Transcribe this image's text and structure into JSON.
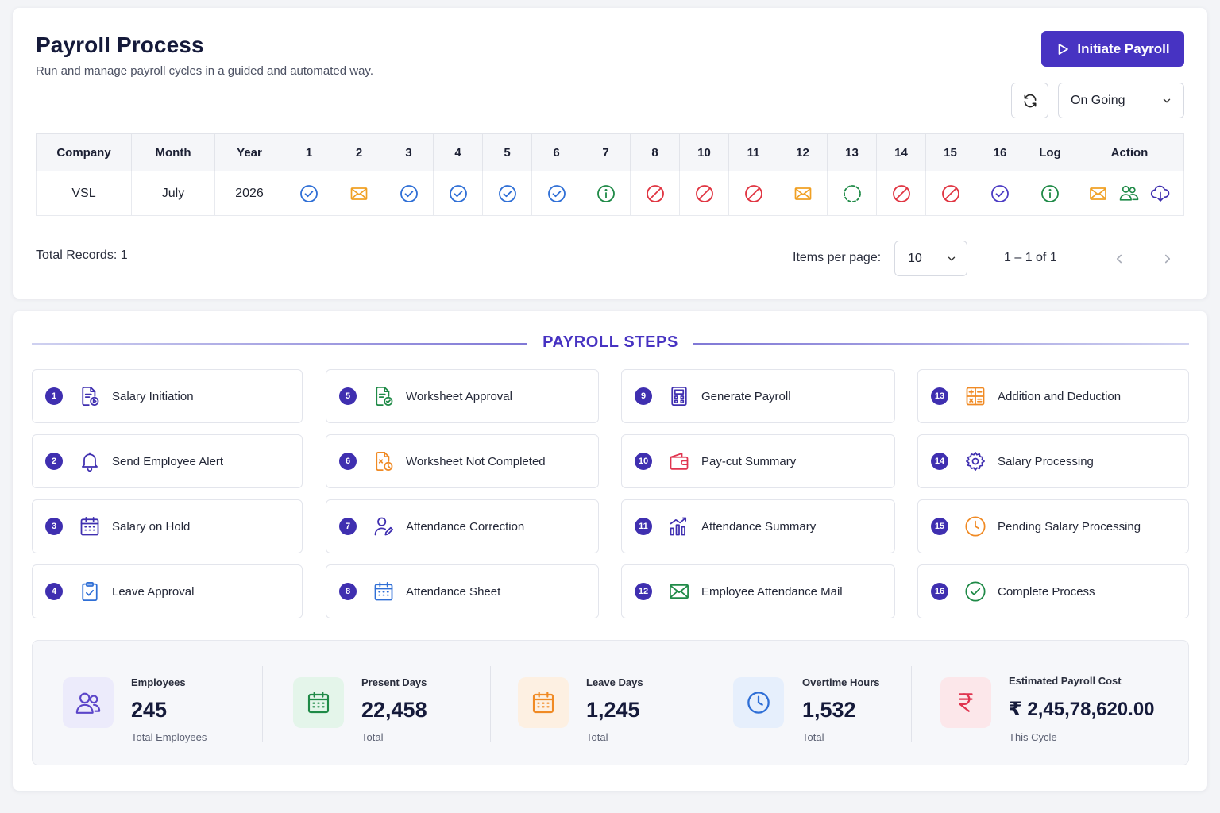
{
  "header": {
    "title": "Payroll Process",
    "subtitle": "Run and manage payroll cycles in a guided and automated way.",
    "initiate_label": "Initiate Payroll",
    "status_value": "On Going"
  },
  "table": {
    "columns": [
      "Company",
      "Month",
      "Year",
      "1",
      "2",
      "3",
      "4",
      "5",
      "6",
      "7",
      "8",
      "10",
      "11",
      "12",
      "13",
      "14",
      "15",
      "16",
      "Log",
      "Action"
    ],
    "row": {
      "company": "VSL",
      "month": "July",
      "year": "2026",
      "step_status": [
        {
          "col": "1",
          "icon": "check-circle-icon"
        },
        {
          "col": "2",
          "icon": "mail-icon"
        },
        {
          "col": "3",
          "icon": "check-circle-icon"
        },
        {
          "col": "4",
          "icon": "check-circle-icon"
        },
        {
          "col": "5",
          "icon": "check-circle-icon"
        },
        {
          "col": "6",
          "icon": "check-circle-icon"
        },
        {
          "col": "7",
          "icon": "info-circle-icon"
        },
        {
          "col": "8",
          "icon": "blocked-icon"
        },
        {
          "col": "10",
          "icon": "blocked-icon"
        },
        {
          "col": "11",
          "icon": "blocked-icon"
        },
        {
          "col": "12",
          "icon": "mail-icon"
        },
        {
          "col": "13",
          "icon": "in-progress-icon"
        },
        {
          "col": "14",
          "icon": "blocked-icon"
        },
        {
          "col": "15",
          "icon": "blocked-icon"
        },
        {
          "col": "16",
          "icon": "check-circle-purple-icon"
        }
      ],
      "log_icon": "info-circle-icon",
      "actions": [
        "mail-icon",
        "users-icon",
        "cloud-download-icon"
      ]
    }
  },
  "footer": {
    "total_label": "Total Records:",
    "total_value": "1",
    "ipp_label": "Items per page:",
    "ipp_value": "10",
    "range": "1 – 1 of 1"
  },
  "steps": {
    "title": "PAYROLL STEPS",
    "items": [
      {
        "n": "1",
        "label": "Salary Initiation",
        "icon": "document-play-icon"
      },
      {
        "n": "2",
        "label": "Send Employee Alert",
        "icon": "bell-icon"
      },
      {
        "n": "3",
        "label": "Salary on Hold",
        "icon": "calendar-icon"
      },
      {
        "n": "4",
        "label": "Leave Approval",
        "icon": "clipboard-check-icon"
      },
      {
        "n": "5",
        "label": "Worksheet Approval",
        "icon": "document-check-icon"
      },
      {
        "n": "6",
        "label": "Worksheet Not Completed",
        "icon": "document-clock-icon"
      },
      {
        "n": "7",
        "label": "Attendance Correction",
        "icon": "user-edit-icon"
      },
      {
        "n": "8",
        "label": "Attendance Sheet",
        "icon": "calendar-grid-icon"
      },
      {
        "n": "9",
        "label": "Generate Payroll",
        "icon": "calculator-icon"
      },
      {
        "n": "10",
        "label": "Pay-cut Summary",
        "icon": "wallet-icon"
      },
      {
        "n": "11",
        "label": "Attendance Summary",
        "icon": "bar-chart-icon"
      },
      {
        "n": "12",
        "label": "Employee Attendance Mail",
        "icon": "mail-icon"
      },
      {
        "n": "13",
        "label": "Addition and Deduction",
        "icon": "plus-minus-icon"
      },
      {
        "n": "14",
        "label": "Salary Processing",
        "icon": "gear-icon"
      },
      {
        "n": "15",
        "label": "Pending Salary Processing",
        "icon": "clock-icon"
      },
      {
        "n": "16",
        "label": "Complete Process",
        "icon": "check-circle-icon"
      }
    ]
  },
  "stats": [
    {
      "label": "Employees",
      "value": "245",
      "sub": "Total Employees",
      "icon": "users-icon",
      "color": "#5b45c9",
      "bg": "#ecebfb"
    },
    {
      "label": "Present Days",
      "value": "22,458",
      "sub": "Total",
      "icon": "calendar-icon",
      "color": "#1f8a47",
      "bg": "#e4f5ea"
    },
    {
      "label": "Leave Days",
      "value": "1,245",
      "sub": "Total",
      "icon": "calendar-icon",
      "color": "#f08a24",
      "bg": "#fdf0e2"
    },
    {
      "label": "Overtime Hours",
      "value": "1,532",
      "sub": "Total",
      "icon": "clock-icon",
      "color": "#2f6fd6",
      "bg": "#e6effc"
    },
    {
      "label": "Estimated Payroll Cost",
      "value": "₹ 2,45,78,620.00",
      "sub": "This Cycle",
      "icon": "rupee-icon",
      "color": "#e0344f",
      "bg": "#fce7ea"
    }
  ],
  "colors": {
    "brand": "#4733c2",
    "success_blue": "#2f6fd6",
    "success_green": "#1f8a47",
    "warning": "#f0a024",
    "danger": "#e03340"
  }
}
